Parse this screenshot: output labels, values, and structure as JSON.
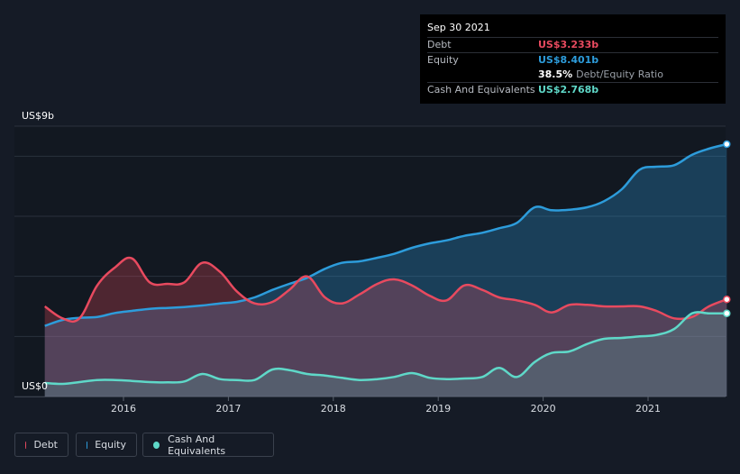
{
  "tooltip": {
    "date": "Sep 30 2021",
    "rows": [
      {
        "label": "Debt",
        "value": "US$3.233b",
        "color": "#e84a5f"
      },
      {
        "label": "Equity",
        "value": "US$8.401b",
        "color": "#2d9cdb"
      },
      {
        "label": "Cash And Equivalents",
        "value": "US$2.768b",
        "color": "#5fd8c8"
      }
    ],
    "ratio_value": "38.5%",
    "ratio_label": "Debt/Equity Ratio"
  },
  "legend": [
    {
      "label": "Debt",
      "color": "#e84a5f"
    },
    {
      "label": "Equity",
      "color": "#2d9cdb"
    },
    {
      "label": "Cash And Equivalents",
      "color": "#5fd8c8"
    }
  ],
  "chart_data": {
    "type": "area",
    "y_axis_labels": [
      "US$9b",
      "US$0"
    ],
    "x_tick_labels": [
      "2016",
      "2017",
      "2018",
      "2019",
      "2020",
      "2021"
    ],
    "ylim": [
      0,
      9
    ],
    "grid": true,
    "legend_position": "bottom-left",
    "series": [
      {
        "name": "Debt",
        "color": "#e84a5f",
        "x": [
          2015.25,
          2015.42,
          2015.58,
          2015.75,
          2015.92,
          2016.08,
          2016.25,
          2016.42,
          2016.58,
          2016.75,
          2016.92,
          2017.08,
          2017.25,
          2017.42,
          2017.58,
          2017.75,
          2017.92,
          2018.08,
          2018.25,
          2018.42,
          2018.58,
          2018.75,
          2018.92,
          2019.08,
          2019.25,
          2019.42,
          2019.58,
          2019.75,
          2019.92,
          2020.08,
          2020.25,
          2020.42,
          2020.58,
          2020.75,
          2020.92,
          2021.08,
          2021.25,
          2021.42,
          2021.58,
          2021.75
        ],
        "values": [
          3.0,
          2.6,
          2.6,
          3.7,
          4.3,
          4.6,
          3.8,
          3.75,
          3.8,
          4.45,
          4.15,
          3.5,
          3.1,
          3.15,
          3.55,
          4.0,
          3.3,
          3.1,
          3.4,
          3.75,
          3.9,
          3.7,
          3.35,
          3.2,
          3.7,
          3.55,
          3.3,
          3.2,
          3.05,
          2.8,
          3.05,
          3.05,
          3.0,
          3.0,
          3.0,
          2.85,
          2.6,
          2.65,
          3.0,
          3.233
        ]
      },
      {
        "name": "Equity",
        "color": "#2d9cdb",
        "x": [
          2015.25,
          2015.42,
          2015.58,
          2015.75,
          2015.92,
          2016.08,
          2016.25,
          2016.42,
          2016.58,
          2016.75,
          2016.92,
          2017.08,
          2017.25,
          2017.42,
          2017.58,
          2017.75,
          2017.92,
          2018.08,
          2018.25,
          2018.42,
          2018.58,
          2018.75,
          2018.92,
          2019.08,
          2019.25,
          2019.42,
          2019.58,
          2019.75,
          2019.92,
          2020.08,
          2020.25,
          2020.42,
          2020.58,
          2020.75,
          2020.92,
          2021.08,
          2021.25,
          2021.42,
          2021.58,
          2021.75
        ],
        "values": [
          2.35,
          2.55,
          2.62,
          2.65,
          2.78,
          2.85,
          2.92,
          2.95,
          2.98,
          3.03,
          3.1,
          3.15,
          3.3,
          3.55,
          3.75,
          3.95,
          4.25,
          4.45,
          4.5,
          4.62,
          4.75,
          4.95,
          5.1,
          5.2,
          5.35,
          5.45,
          5.6,
          5.78,
          6.3,
          6.2,
          6.22,
          6.3,
          6.5,
          6.9,
          7.55,
          7.65,
          7.7,
          8.05,
          8.25,
          8.401
        ]
      },
      {
        "name": "Cash And Equivalents",
        "color": "#5fd8c8",
        "x": [
          2015.25,
          2015.42,
          2015.58,
          2015.75,
          2015.92,
          2016.08,
          2016.25,
          2016.42,
          2016.58,
          2016.75,
          2016.92,
          2017.08,
          2017.25,
          2017.42,
          2017.58,
          2017.75,
          2017.92,
          2018.08,
          2018.25,
          2018.42,
          2018.58,
          2018.75,
          2018.92,
          2019.08,
          2019.25,
          2019.42,
          2019.58,
          2019.75,
          2019.92,
          2020.08,
          2020.25,
          2020.42,
          2020.58,
          2020.75,
          2020.92,
          2021.08,
          2021.25,
          2021.42,
          2021.58,
          2021.75
        ],
        "values": [
          0.45,
          0.42,
          0.48,
          0.55,
          0.55,
          0.52,
          0.48,
          0.47,
          0.5,
          0.75,
          0.58,
          0.55,
          0.55,
          0.9,
          0.88,
          0.75,
          0.7,
          0.62,
          0.55,
          0.58,
          0.65,
          0.78,
          0.62,
          0.58,
          0.6,
          0.65,
          0.95,
          0.65,
          1.15,
          1.45,
          1.5,
          1.75,
          1.92,
          1.95,
          2.0,
          2.05,
          2.25,
          2.768,
          2.768,
          2.768
        ]
      }
    ]
  }
}
